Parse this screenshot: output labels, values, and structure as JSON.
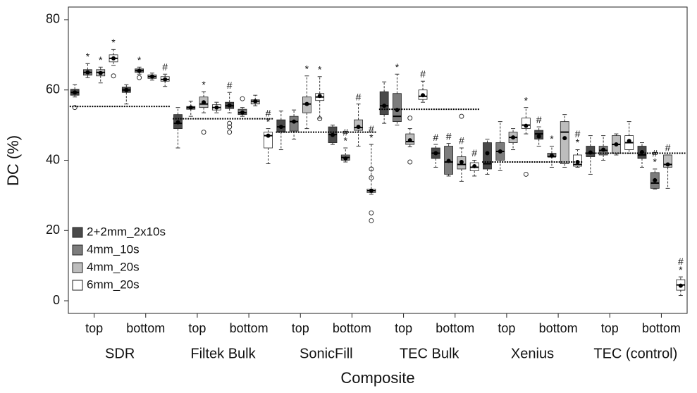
{
  "chart_data": {
    "type": "box",
    "y_label": "DC (%)",
    "x_label": "Composite",
    "ylim": [
      -3.6,
      83.6
    ],
    "yticks": [
      0,
      20,
      40,
      60,
      80
    ],
    "legend": "lower-left",
    "series": [
      {
        "name": "2+2mm_2x10s",
        "color": "#4a4a4a"
      },
      {
        "name": "4mm_10s",
        "color": "#7c7c7c"
      },
      {
        "name": "4mm_20s",
        "color": "#bdbdbd"
      },
      {
        "name": "6mm_20s",
        "color": "#ffffff"
      }
    ],
    "groups": [
      {
        "name": "SDR",
        "ref": 55.3,
        "subgroups": [
          {
            "name": "top",
            "boxes": [
              {
                "min": 58,
                "q1": 58.5,
                "median": 59.3,
                "q3": 60.2,
                "max": 61.5,
                "mean": 59.3,
                "outliers": [
                  55
                ],
                "flags": []
              },
              {
                "min": 63.5,
                "q1": 64.2,
                "median": 65,
                "q3": 65.8,
                "max": 67.5,
                "mean": 65,
                "outliers": [],
                "flags": [
                  "*"
                ]
              },
              {
                "min": 62,
                "q1": 64,
                "median": 65,
                "q3": 65.8,
                "max": 66.5,
                "mean": 64.8,
                "outliers": [],
                "flags": [
                  "*"
                ]
              },
              {
                "min": 67,
                "q1": 68,
                "median": 69,
                "q3": 70,
                "max": 71.5,
                "mean": 69,
                "outliers": [
                  64
                ],
                "flags": [
                  "*"
                ]
              }
            ]
          },
          {
            "name": "bottom",
            "boxes": [
              {
                "min": 56,
                "q1": 59.3,
                "median": 60,
                "q3": 60.8,
                "max": 61.5,
                "mean": 60,
                "outliers": [],
                "flags": []
              },
              {
                "min": 64.5,
                "q1": 65,
                "median": 65.5,
                "q3": 66,
                "max": 66.5,
                "mean": 65.4,
                "outliers": [
                  63.5
                ],
                "flags": [
                  "*"
                ]
              },
              {
                "min": 62.8,
                "q1": 63.3,
                "median": 63.8,
                "q3": 64.3,
                "max": 64.8,
                "mean": 63.8,
                "outliers": [],
                "flags": []
              },
              {
                "min": 61,
                "q1": 62.5,
                "median": 63,
                "q3": 63.8,
                "max": 64.5,
                "mean": 63,
                "outliers": [],
                "flags": [
                  "#"
                ]
              }
            ]
          }
        ]
      },
      {
        "name": "Filtek Bulk",
        "ref": 51.8,
        "subgroups": [
          {
            "name": "top",
            "boxes": [
              {
                "min": 43.5,
                "q1": 49,
                "median": 50.5,
                "q3": 53,
                "max": 55,
                "mean": 50.8,
                "outliers": [],
                "flags": []
              },
              {
                "min": 52.5,
                "q1": 54.5,
                "median": 55,
                "q3": 55.3,
                "max": 56.8,
                "mean": 55,
                "outliers": [],
                "flags": []
              },
              {
                "min": 53.5,
                "q1": 55,
                "median": 56,
                "q3": 58,
                "max": 59.5,
                "mean": 56.5,
                "outliers": [
                  48
                ],
                "flags": [
                  "*"
                ]
              },
              {
                "min": 53.5,
                "q1": 54.3,
                "median": 55,
                "q3": 55.8,
                "max": 56.5,
                "mean": 55,
                "outliers": [],
                "flags": []
              }
            ]
          },
          {
            "name": "bottom",
            "boxes": [
              {
                "min": 53.5,
                "q1": 54.7,
                "median": 55.5,
                "q3": 56.5,
                "max": 59.3,
                "mean": 55.6,
                "outliers": [
                  50.5,
                  49.5,
                  48
                ],
                "flags": [
                  "#"
                ]
              },
              {
                "min": 52.5,
                "q1": 53,
                "median": 53.5,
                "q3": 54.5,
                "max": 55,
                "mean": 53.6,
                "outliers": [
                  57.5
                ],
                "flags": []
              },
              {
                "min": 55.5,
                "q1": 56,
                "median": 56.8,
                "q3": 57.2,
                "max": 58.5,
                "mean": 56.8,
                "outliers": [],
                "flags": []
              },
              {
                "min": 39,
                "q1": 43.5,
                "median": 47,
                "q3": 48,
                "max": 49,
                "mean": 47,
                "outliers": [],
                "flags": [
                  "#",
                  "*"
                ]
              }
            ]
          }
        ]
      },
      {
        "name": "SonicFill",
        "ref": 48,
        "subgroups": [
          {
            "name": "top",
            "boxes": [
              {
                "min": 43,
                "q1": 48,
                "median": 49.5,
                "q3": 51.5,
                "max": 54,
                "mean": 49.5,
                "outliers": [],
                "flags": []
              },
              {
                "min": 46,
                "q1": 48.3,
                "median": 51,
                "q3": 52.5,
                "max": 54.3,
                "mean": 51,
                "outliers": [],
                "flags": []
              },
              {
                "min": 49,
                "q1": 53.5,
                "median": 56,
                "q3": 58,
                "max": 64,
                "mean": 56,
                "outliers": [],
                "flags": [
                  "*"
                ]
              },
              {
                "min": 52,
                "q1": 57,
                "median": 58,
                "q3": 59,
                "max": 63.8,
                "mean": 58.3,
                "outliers": [
                  51.8
                ],
                "flags": [
                  "*"
                ]
              }
            ]
          },
          {
            "name": "bottom",
            "boxes": [
              {
                "min": 44.5,
                "q1": 45,
                "median": 47.3,
                "q3": 49.5,
                "max": 50,
                "mean": 47.2,
                "outliers": [],
                "flags": []
              },
              {
                "min": 39.5,
                "q1": 40,
                "median": 40.8,
                "q3": 41.5,
                "max": 43.5,
                "mean": 40.5,
                "outliers": [],
                "flags": [
                  "#",
                  "*"
                ]
              },
              {
                "min": 44,
                "q1": 48.5,
                "median": 49.3,
                "q3": 51.5,
                "max": 56,
                "mean": 49.5,
                "outliers": [],
                "flags": [
                  "#"
                ]
              },
              {
                "min": 30.3,
                "q1": 30.8,
                "median": 31.3,
                "q3": 31.8,
                "max": 44.5,
                "mean": 31.3,
                "outliers": [
                  37.5,
                  35,
                  25,
                  22.8
                ],
                "flags": [
                  "#",
                  "*"
                ]
              }
            ]
          }
        ]
      },
      {
        "name": "TEC Bulk",
        "ref": 54.5,
        "subgroups": [
          {
            "name": "top",
            "boxes": [
              {
                "min": 50.5,
                "q1": 53,
                "median": 55.5,
                "q3": 59.5,
                "max": 62.3,
                "mean": 55.5,
                "outliers": [],
                "flags": []
              },
              {
                "min": 50,
                "q1": 51,
                "median": 52.5,
                "q3": 59,
                "max": 64.5,
                "mean": 54.3,
                "outliers": [],
                "flags": [
                  "*"
                ]
              },
              {
                "min": 43.8,
                "q1": 44.5,
                "median": 45.3,
                "q3": 47.5,
                "max": 49,
                "mean": 45.7,
                "outliers": [
                  52,
                  39.5
                ],
                "flags": []
              },
              {
                "min": 56.5,
                "q1": 57.3,
                "median": 58.2,
                "q3": 60,
                "max": 62.5,
                "mean": 58.5,
                "outliers": [],
                "flags": [
                  "#"
                ]
              }
            ]
          },
          {
            "name": "bottom",
            "boxes": [
              {
                "min": 38,
                "q1": 40.5,
                "median": 42,
                "q3": 43.5,
                "max": 44.5,
                "mean": 42,
                "outliers": [],
                "flags": [
                  "#"
                ]
              },
              {
                "min": 35.5,
                "q1": 36,
                "median": 39.5,
                "q3": 44,
                "max": 44.8,
                "mean": 39.8,
                "outliers": [],
                "flags": [
                  "#"
                ]
              },
              {
                "min": 34,
                "q1": 37.5,
                "median": 38.8,
                "q3": 41,
                "max": 43.5,
                "mean": 39.5,
                "outliers": [
                  52.5
                ],
                "flags": [
                  "#"
                ]
              },
              {
                "min": 35.5,
                "q1": 37,
                "median": 38,
                "q3": 39.3,
                "max": 40,
                "mean": 38.3,
                "outliers": [],
                "flags": [
                  "#"
                ]
              }
            ]
          }
        ]
      },
      {
        "name": "Xenius",
        "ref": 39.5,
        "subgroups": [
          {
            "name": "top",
            "boxes": [
              {
                "min": 36,
                "q1": 37.5,
                "median": 39,
                "q3": 45,
                "max": 46,
                "mean": 42,
                "outliers": [],
                "flags": []
              },
              {
                "min": 37,
                "q1": 40,
                "median": 42.5,
                "q3": 45,
                "max": 51,
                "mean": 42.5,
                "outliers": [],
                "flags": []
              },
              {
                "min": 43,
                "q1": 45,
                "median": 46.5,
                "q3": 48,
                "max": 49,
                "mean": 46.5,
                "outliers": [],
                "flags": []
              },
              {
                "min": 47.5,
                "q1": 49,
                "median": 50,
                "q3": 52,
                "max": 55,
                "mean": 49.8,
                "outliers": [
                  36
                ],
                "flags": [
                  "*"
                ]
              }
            ]
          },
          {
            "name": "bottom",
            "boxes": [
              {
                "min": 44,
                "q1": 46,
                "median": 47.5,
                "q3": 48.5,
                "max": 49.5,
                "mean": 46.8,
                "outliers": [],
                "flags": [
                  "#"
                ]
              },
              {
                "min": 38,
                "q1": 41,
                "median": 41,
                "q3": 42,
                "max": 44,
                "mean": 41.3,
                "outliers": [],
                "flags": [
                  "*"
                ]
              },
              {
                "min": 38,
                "q1": 39,
                "median": 48,
                "q3": 51,
                "max": 53,
                "mean": 46.3,
                "outliers": [],
                "flags": []
              },
              {
                "min": 38,
                "q1": 38.3,
                "median": 38.8,
                "q3": 41.5,
                "max": 43,
                "mean": 39.5,
                "outliers": [],
                "flags": [
                  "#",
                  "*"
                ]
              }
            ]
          }
        ]
      },
      {
        "name": "TEC (control)",
        "ref": 42,
        "subgroups": [
          {
            "name": "top",
            "boxes": [
              {
                "min": 36,
                "q1": 41,
                "median": 42,
                "q3": 44,
                "max": 47,
                "mean": 42.2,
                "outliers": [],
                "flags": []
              },
              {
                "min": 40,
                "q1": 41.5,
                "median": 42.8,
                "q3": 44,
                "max": 47,
                "mean": 43,
                "outliers": [],
                "flags": []
              },
              {
                "min": 41.5,
                "q1": 42,
                "median": 44.5,
                "q3": 47,
                "max": 47.5,
                "mean": 44.5,
                "outliers": [],
                "flags": []
              },
              {
                "min": 42,
                "q1": 43,
                "median": 45,
                "q3": 47,
                "max": 51,
                "mean": 45.5,
                "outliers": [],
                "flags": []
              }
            ]
          },
          {
            "name": "bottom",
            "boxes": [
              {
                "min": 38,
                "q1": 40.5,
                "median": 41.5,
                "q3": 44,
                "max": 45,
                "mean": 42.3,
                "outliers": [],
                "flags": []
              },
              {
                "min": 31.8,
                "q1": 32,
                "median": 33.5,
                "q3": 36.5,
                "max": 37.5,
                "mean": 34.3,
                "outliers": [],
                "flags": [
                  "#",
                  "*"
                ]
              },
              {
                "min": 32,
                "q1": 38,
                "median": 38.8,
                "q3": 41.5,
                "max": 41.5,
                "mean": 38.8,
                "outliers": [],
                "flags": [
                  "#"
                ]
              },
              {
                "min": 1.5,
                "q1": 3,
                "median": 4.5,
                "q3": 6,
                "max": 6.8,
                "mean": 4.3,
                "outliers": [],
                "flags": [
                  "#",
                  "*"
                ]
              }
            ]
          }
        ]
      }
    ]
  }
}
